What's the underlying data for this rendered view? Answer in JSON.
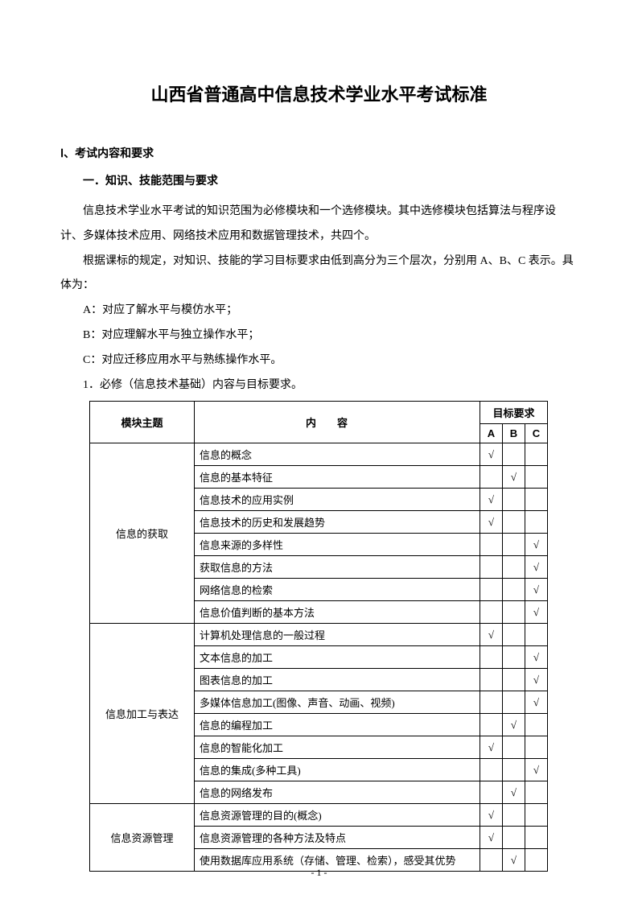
{
  "title": "山西省普通高中信息技术学业水平考试标准",
  "section_heading": "Ⅰ、考试内容和要求",
  "sub_heading": "一．知识、技能范围与要求",
  "paragraphs": {
    "p1": "信息技术学业水平考试的知识范围为必修模块和一个选修模块。其中选修模块包括算法与程序设计、多媒体技术应用、网络技术应用和数据管理技术，共四个。",
    "p2": "根据课标的规定，对知识、技能的学习目标要求由低到高分为三个层次，分别用 A、B、C 表示。具体为：",
    "levelA": "A：对应了解水平与模仿水平；",
    "levelB": "B：对应理解水平与独立操作水平；",
    "levelC": "C：对应迁移应用水平与熟练操作水平。",
    "item1": "1．必修（信息技术基础）内容与目标要求。"
  },
  "table": {
    "headers": {
      "topic": "模块主题",
      "content": "内容",
      "goal": "目标要求",
      "A": "A",
      "B": "B",
      "C": "C"
    },
    "check": "√",
    "groups": [
      {
        "topic": "信息的获取",
        "rows": [
          {
            "content": "信息的概念",
            "A": true,
            "B": false,
            "C": false
          },
          {
            "content": "信息的基本特征",
            "A": false,
            "B": true,
            "C": false
          },
          {
            "content": "信息技术的应用实例",
            "A": true,
            "B": false,
            "C": false
          },
          {
            "content": "信息技术的历史和发展趋势",
            "A": true,
            "B": false,
            "C": false
          },
          {
            "content": "信息来源的多样性",
            "A": false,
            "B": false,
            "C": true
          },
          {
            "content": "获取信息的方法",
            "A": false,
            "B": false,
            "C": true
          },
          {
            "content": "网络信息的检索",
            "A": false,
            "B": false,
            "C": true
          },
          {
            "content": "信息价值判断的基本方法",
            "A": false,
            "B": false,
            "C": true
          }
        ]
      },
      {
        "topic": "信息加工与表达",
        "rows": [
          {
            "content": "计算机处理信息的一般过程",
            "A": true,
            "B": false,
            "C": false
          },
          {
            "content": "文本信息的加工",
            "A": false,
            "B": false,
            "C": true
          },
          {
            "content": "图表信息的加工",
            "A": false,
            "B": false,
            "C": true
          },
          {
            "content": "多媒体信息加工(图像、声音、动画、视频)",
            "A": false,
            "B": false,
            "C": true
          },
          {
            "content": "信息的编程加工",
            "A": false,
            "B": true,
            "C": false
          },
          {
            "content": "信息的智能化加工",
            "A": true,
            "B": false,
            "C": false
          },
          {
            "content": "信息的集成(多种工具)",
            "A": false,
            "B": false,
            "C": true
          },
          {
            "content": "信息的网络发布",
            "A": false,
            "B": true,
            "C": false
          }
        ]
      },
      {
        "topic": "信息资源管理",
        "rows": [
          {
            "content": "信息资源管理的目的(概念)",
            "A": true,
            "B": false,
            "C": false
          },
          {
            "content": "信息资源管理的各种方法及特点",
            "A": true,
            "B": false,
            "C": false
          },
          {
            "content": "使用数据库应用系统（存储、管理、检索），感受其优势",
            "A": false,
            "B": true,
            "C": false
          }
        ]
      }
    ]
  },
  "page_number": "- 1 -"
}
